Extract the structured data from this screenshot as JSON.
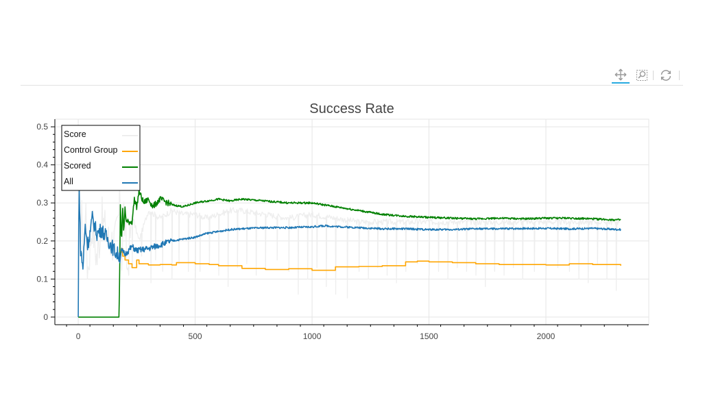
{
  "toolbar": {
    "tools": [
      {
        "name": "pan-tool",
        "icon": "move-arrows-icon",
        "active": true
      },
      {
        "name": "box-zoom-tool",
        "icon": "box-zoom-icon",
        "active": false
      },
      {
        "name": "reset-tool",
        "icon": "reset-icon",
        "active": false
      }
    ],
    "active_color": "#26aae1"
  },
  "chart_data": {
    "type": "line",
    "title": "Success Rate",
    "xlabel": "",
    "ylabel": "",
    "xlim": [
      -100,
      2440
    ],
    "ylim": [
      -0.02,
      0.52
    ],
    "xticks": [
      0,
      500,
      1000,
      1500,
      2000
    ],
    "xtick_labels": [
      "0",
      "500",
      "1000",
      "1500",
      "2000"
    ],
    "yticks": [
      0,
      0.1,
      0.2,
      0.3,
      0.4,
      0.5
    ],
    "ytick_labels": [
      "0",
      "0.1",
      "0.2",
      "0.3",
      "0.4",
      "0.5"
    ],
    "grid": true,
    "legend": {
      "placement": "top-left"
    },
    "series": [
      {
        "name": "Score",
        "color": "#eeeeee",
        "style": "noisy-spikes",
        "x": [
          0,
          5,
          10,
          15,
          20,
          30,
          40,
          60,
          80,
          100,
          130,
          160,
          180,
          185,
          195,
          210,
          230,
          260,
          300,
          350,
          400,
          450,
          500,
          550,
          600,
          650,
          700,
          800,
          900,
          1000,
          1100,
          1200,
          1300,
          1400,
          1500,
          1600,
          1700,
          1800,
          1900,
          2000,
          2100,
          2200,
          2320
        ],
        "y": [
          0.2,
          0.5,
          0.1,
          0.35,
          0.14,
          0.3,
          0.12,
          0.25,
          0.15,
          0.26,
          0.2,
          0.2,
          0.3,
          0.15,
          0.28,
          0.12,
          0.27,
          0.2,
          0.28,
          0.26,
          0.28,
          0.27,
          0.27,
          0.26,
          0.27,
          0.28,
          0.28,
          0.27,
          0.26,
          0.27,
          0.26,
          0.25,
          0.25,
          0.25,
          0.25,
          0.25,
          0.25,
          0.25,
          0.25,
          0.25,
          0.25,
          0.25,
          0.25
        ],
        "dips": [
          230,
          270,
          310,
          330,
          360,
          400,
          430,
          470,
          500,
          520,
          560,
          600,
          640,
          680,
          720,
          760,
          800,
          850,
          900,
          940,
          980,
          1020,
          1060,
          1100,
          1150,
          1200,
          1240,
          1280,
          1320,
          1360,
          1400,
          1450,
          1500,
          1540,
          1580,
          1620,
          1660,
          1700,
          1740,
          1780,
          1820,
          1860,
          1900,
          1950,
          2000,
          2050,
          2100,
          2140,
          2180,
          2220,
          2260,
          2300
        ],
        "dip_y": [
          0.13,
          0.16,
          0.09,
          0.15,
          0.12,
          0.1,
          0.14,
          0.12,
          0.09,
          0.12,
          0.14,
          0.11,
          0.08,
          0.13,
          0.14,
          0.11,
          0.13,
          0.15,
          0.12,
          0.06,
          0.1,
          0.13,
          0.08,
          0.06,
          0.05,
          0.12,
          0.1,
          0.13,
          0.11,
          0.09,
          0.12,
          0.14,
          0.11,
          0.12,
          0.1,
          0.13,
          0.12,
          0.11,
          0.08,
          0.12,
          0.11,
          0.13,
          0.1,
          0.12,
          0.11,
          0.13,
          0.12,
          0.1,
          0.09,
          0.14,
          0.1,
          0.07
        ]
      },
      {
        "name": "Control Group",
        "color": "#ffa500",
        "style": "step",
        "x": [
          180,
          185,
          190,
          200,
          215,
          230,
          250,
          260,
          280,
          300,
          350,
          400,
          420,
          500,
          560,
          600,
          700,
          800,
          900,
          1000,
          1060,
          1100,
          1200,
          1300,
          1400,
          1450,
          1500,
          1600,
          1700,
          1800,
          1900,
          2000,
          2100,
          2200,
          2320
        ],
        "y": [
          0.17,
          0.18,
          0.16,
          0.15,
          0.14,
          0.13,
          0.15,
          0.14,
          0.14,
          0.137,
          0.138,
          0.137,
          0.143,
          0.14,
          0.138,
          0.135,
          0.128,
          0.125,
          0.127,
          0.123,
          0.123,
          0.132,
          0.133,
          0.135,
          0.145,
          0.147,
          0.145,
          0.143,
          0.14,
          0.138,
          0.138,
          0.137,
          0.14,
          0.138,
          0.135
        ]
      },
      {
        "name": "Scored",
        "color": "#008000",
        "style": "noisy",
        "x": [
          0,
          5,
          175,
          180,
          185,
          190,
          195,
          200,
          205,
          210,
          230,
          240,
          250,
          260,
          280,
          300,
          320,
          350,
          400,
          450,
          500,
          550,
          600,
          650,
          700,
          800,
          900,
          1000,
          1100,
          1200,
          1300,
          1400,
          1500,
          1600,
          1700,
          1800,
          1900,
          2000,
          2100,
          2200,
          2320
        ],
        "y": [
          0,
          0,
          0,
          0.3,
          0.2,
          0.28,
          0.22,
          0.29,
          0.25,
          0.25,
          0.25,
          0.31,
          0.29,
          0.33,
          0.3,
          0.31,
          0.29,
          0.31,
          0.295,
          0.29,
          0.3,
          0.305,
          0.31,
          0.305,
          0.31,
          0.305,
          0.3,
          0.3,
          0.29,
          0.28,
          0.27,
          0.265,
          0.262,
          0.26,
          0.258,
          0.26,
          0.258,
          0.26,
          0.26,
          0.258,
          0.255
        ]
      },
      {
        "name": "All",
        "color": "#1f77b4",
        "style": "noisy",
        "x": [
          0,
          3,
          10,
          20,
          30,
          40,
          50,
          60,
          80,
          100,
          120,
          140,
          160,
          180,
          185,
          200,
          230,
          250,
          300,
          350,
          400,
          450,
          500,
          550,
          600,
          650,
          700,
          800,
          900,
          1000,
          1050,
          1100,
          1200,
          1300,
          1400,
          1500,
          1600,
          1700,
          1800,
          1900,
          2000,
          2100,
          2200,
          2320
        ],
        "y": [
          0,
          0.36,
          0.18,
          0.13,
          0.24,
          0.19,
          0.22,
          0.26,
          0.22,
          0.23,
          0.21,
          0.19,
          0.17,
          0.16,
          0.175,
          0.165,
          0.185,
          0.175,
          0.18,
          0.19,
          0.2,
          0.205,
          0.21,
          0.22,
          0.225,
          0.23,
          0.232,
          0.235,
          0.235,
          0.237,
          0.24,
          0.238,
          0.235,
          0.232,
          0.232,
          0.23,
          0.23,
          0.232,
          0.232,
          0.233,
          0.233,
          0.232,
          0.233,
          0.23
        ]
      }
    ]
  }
}
